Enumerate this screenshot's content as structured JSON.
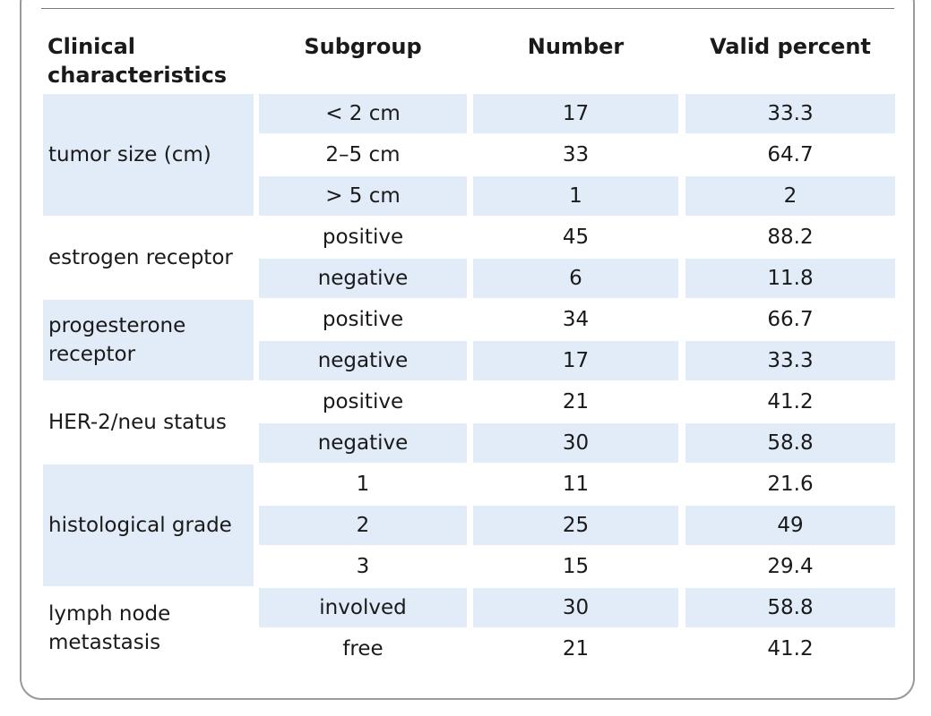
{
  "headers": {
    "characteristics": "Clinical characteristics",
    "subgroup": "Subgroup",
    "number": "Number",
    "valid_percent": "Valid percent"
  },
  "groups": [
    {
      "label": "tumor size (cm)",
      "rows": [
        {
          "subgroup": "< 2 cm",
          "number": "17",
          "percent": "33.3"
        },
        {
          "subgroup": "2–5 cm",
          "number": "33",
          "percent": "64.7"
        },
        {
          "subgroup": "> 5 cm",
          "number": "1",
          "percent": "2"
        }
      ]
    },
    {
      "label": "estrogen receptor",
      "rows": [
        {
          "subgroup": "positive",
          "number": "45",
          "percent": "88.2"
        },
        {
          "subgroup": "negative",
          "number": "6",
          "percent": "11.8"
        }
      ]
    },
    {
      "label": "progesterone receptor",
      "rows": [
        {
          "subgroup": "positive",
          "number": "34",
          "percent": "66.7"
        },
        {
          "subgroup": "negative",
          "number": "17",
          "percent": "33.3"
        }
      ]
    },
    {
      "label": "HER-2/neu status",
      "rows": [
        {
          "subgroup": "positive",
          "number": "21",
          "percent": "41.2"
        },
        {
          "subgroup": "negative",
          "number": "30",
          "percent": "58.8"
        }
      ]
    },
    {
      "label": "histological grade",
      "rows": [
        {
          "subgroup": "1",
          "number": "11",
          "percent": "21.6"
        },
        {
          "subgroup": "2",
          "number": "25",
          "percent": "49"
        },
        {
          "subgroup": "3",
          "number": "15",
          "percent": "29.4"
        }
      ]
    },
    {
      "label": "lymph node metastasis",
      "rows": [
        {
          "subgroup": "involved",
          "number": "30",
          "percent": "58.8"
        },
        {
          "subgroup": "free",
          "number": "21",
          "percent": "41.2"
        }
      ]
    }
  ],
  "colors": {
    "shade": "#e2ebf8",
    "border": "#9a9a9a",
    "text": "#1a1a1a"
  }
}
